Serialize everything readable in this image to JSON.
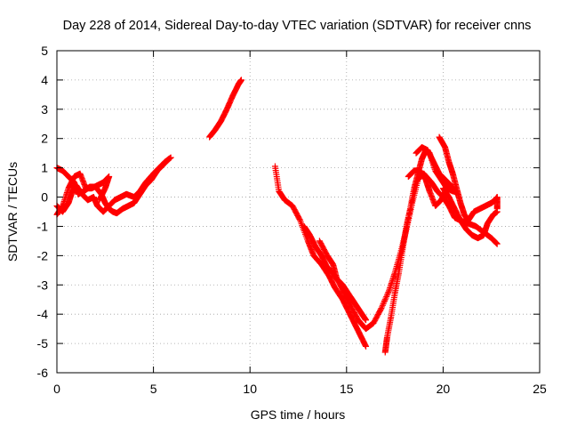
{
  "chart_data": {
    "type": "scatter",
    "title": "Day 228 of 2014, Sidereal Day-to-day VTEC variation (SDTVAR) for receiver cnns",
    "xlabel": "GPS time / hours",
    "ylabel": "SDTVAR / TECUs",
    "xlim": [
      0,
      25
    ],
    "ylim": [
      -6,
      5
    ],
    "xticks": [
      0,
      5,
      10,
      15,
      20,
      25
    ],
    "yticks": [
      -6,
      -5,
      -4,
      -3,
      -2,
      -1,
      0,
      1,
      2,
      3,
      4,
      5
    ],
    "grid": true,
    "marker": "plus",
    "series": [
      {
        "color": "#ff0000",
        "segments": [
          [
            [
              0.0,
              -0.3
            ],
            [
              0.3,
              -0.5
            ],
            [
              0.6,
              -0.2
            ],
            [
              0.8,
              0.2
            ],
            [
              1.0,
              0.4
            ],
            [
              1.3,
              0.1
            ],
            [
              1.6,
              -0.1
            ],
            [
              1.9,
              0.0
            ],
            [
              2.1,
              -0.3
            ],
            [
              2.4,
              -0.5
            ],
            [
              2.7,
              -0.3
            ],
            [
              3.0,
              -0.1
            ],
            [
              3.3,
              0.0
            ],
            [
              3.6,
              0.1
            ],
            [
              4.0,
              0.0
            ],
            [
              4.3,
              0.2
            ],
            [
              4.6,
              0.5
            ],
            [
              5.0,
              0.8
            ],
            [
              5.3,
              1.0
            ],
            [
              5.6,
              1.2
            ],
            [
              5.9,
              1.35
            ]
          ],
          [
            [
              0.0,
              1.0
            ],
            [
              0.3,
              0.9
            ],
            [
              0.6,
              0.7
            ],
            [
              0.9,
              0.5
            ],
            [
              1.1,
              0.1
            ],
            [
              1.4,
              0.2
            ],
            [
              1.7,
              0.35
            ],
            [
              2.0,
              0.35
            ],
            [
              2.3,
              0.1
            ],
            [
              2.5,
              -0.2
            ],
            [
              2.7,
              -0.4
            ],
            [
              2.9,
              -0.5
            ],
            [
              3.1,
              -0.55
            ],
            [
              3.4,
              -0.4
            ],
            [
              3.7,
              -0.3
            ],
            [
              4.0,
              -0.2
            ],
            [
              4.3,
              0.1
            ],
            [
              4.6,
              0.4
            ],
            [
              4.9,
              0.6
            ],
            [
              5.2,
              0.9
            ],
            [
              5.5,
              1.1
            ],
            [
              5.8,
              1.3
            ]
          ],
          [
            [
              0.0,
              -0.6
            ],
            [
              0.3,
              -0.3
            ],
            [
              0.6,
              0.3
            ],
            [
              0.9,
              0.7
            ],
            [
              1.2,
              0.8
            ],
            [
              1.5,
              0.3
            ],
            [
              1.8,
              0.3
            ],
            [
              2.1,
              0.4
            ],
            [
              2.4,
              0.5
            ],
            [
              2.7,
              0.7
            ],
            [
              2.5,
              0.3
            ],
            [
              2.2,
              -0.1
            ]
          ],
          [
            [
              7.9,
              2.05
            ],
            [
              8.2,
              2.3
            ],
            [
              8.5,
              2.6
            ],
            [
              8.8,
              3.0
            ],
            [
              9.1,
              3.45
            ],
            [
              9.4,
              3.85
            ],
            [
              9.55,
              4.0
            ]
          ],
          [
            [
              11.3,
              1.05
            ],
            [
              11.5,
              0.2
            ],
            [
              11.8,
              -0.1
            ],
            [
              12.2,
              -0.3
            ],
            [
              12.6,
              -0.8
            ],
            [
              13.0,
              -1.5
            ],
            [
              13.3,
              -2.0
            ],
            [
              13.7,
              -2.3
            ],
            [
              14.1,
              -2.7
            ],
            [
              14.4,
              -3.1
            ],
            [
              14.8,
              -3.5
            ],
            [
              15.1,
              -3.9
            ],
            [
              15.4,
              -4.3
            ],
            [
              15.7,
              -4.7
            ],
            [
              16.0,
              -5.1
            ]
          ],
          [
            [
              12.8,
              -1.0
            ],
            [
              13.1,
              -1.3
            ],
            [
              13.4,
              -1.7
            ],
            [
              13.7,
              -2.0
            ],
            [
              14.0,
              -2.4
            ],
            [
              14.3,
              -2.6
            ],
            [
              14.6,
              -2.9
            ],
            [
              14.9,
              -3.3
            ],
            [
              15.2,
              -3.7
            ],
            [
              15.6,
              -4.2
            ],
            [
              16.0,
              -4.5
            ],
            [
              16.4,
              -4.3
            ],
            [
              16.8,
              -3.8
            ],
            [
              17.2,
              -3.2
            ],
            [
              17.5,
              -2.6
            ],
            [
              17.8,
              -1.9
            ],
            [
              18.1,
              -1.1
            ],
            [
              18.4,
              -0.2
            ],
            [
              18.7,
              0.6
            ],
            [
              19.0,
              0.8
            ],
            [
              19.4,
              0.5
            ],
            [
              19.7,
              0.2
            ],
            [
              20.0,
              0.0
            ],
            [
              20.3,
              -0.3
            ],
            [
              20.6,
              -0.7
            ],
            [
              20.9,
              -0.8
            ],
            [
              21.3,
              -0.9
            ],
            [
              21.7,
              -1.0
            ],
            [
              22.1,
              -1.2
            ],
            [
              22.5,
              -1.4
            ],
            [
              22.8,
              -1.6
            ]
          ],
          [
            [
              13.6,
              -1.5
            ],
            [
              14.0,
              -2.0
            ],
            [
              14.3,
              -2.3
            ],
            [
              14.5,
              -2.8
            ],
            [
              14.8,
              -3.0
            ],
            [
              15.2,
              -3.4
            ],
            [
              15.5,
              -3.7
            ],
            [
              15.8,
              -4.0
            ],
            [
              16.0,
              -4.2
            ]
          ],
          [
            [
              17.0,
              -5.3
            ],
            [
              17.1,
              -4.8
            ],
            [
              17.3,
              -4.1
            ],
            [
              17.5,
              -3.3
            ],
            [
              17.7,
              -2.6
            ],
            [
              17.9,
              -1.8
            ],
            [
              18.1,
              -1.0
            ],
            [
              18.3,
              -0.4
            ],
            [
              18.5,
              0.3
            ],
            [
              18.7,
              0.8
            ],
            [
              18.9,
              1.3
            ],
            [
              19.1,
              1.6
            ],
            [
              19.3,
              1.5
            ],
            [
              19.6,
              0.9
            ],
            [
              19.9,
              0.6
            ],
            [
              20.2,
              0.3
            ],
            [
              20.5,
              0.3
            ]
          ],
          [
            [
              18.6,
              1.5
            ],
            [
              18.9,
              1.7
            ],
            [
              19.2,
              1.6
            ],
            [
              19.5,
              1.2
            ],
            [
              19.8,
              0.8
            ],
            [
              20.1,
              0.6
            ],
            [
              20.4,
              0.4
            ],
            [
              20.7,
              0.1
            ]
          ],
          [
            [
              18.2,
              0.7
            ],
            [
              18.5,
              0.9
            ],
            [
              18.8,
              0.9
            ],
            [
              19.1,
              0.6
            ],
            [
              19.3,
              0.2
            ],
            [
              19.6,
              -0.3
            ],
            [
              19.9,
              -0.1
            ],
            [
              20.2,
              0.3
            ],
            [
              20.5,
              0.2
            ]
          ],
          [
            [
              19.8,
              2.05
            ],
            [
              20.1,
              1.7
            ],
            [
              20.3,
              1.2
            ],
            [
              20.5,
              0.8
            ],
            [
              20.7,
              0.3
            ],
            [
              20.9,
              -0.2
            ],
            [
              21.1,
              -0.6
            ],
            [
              21.3,
              -0.8
            ],
            [
              21.6,
              -0.5
            ],
            [
              21.9,
              -0.4
            ],
            [
              22.2,
              -0.3
            ],
            [
              22.5,
              -0.2
            ],
            [
              22.7,
              -0.1
            ],
            [
              22.8,
              0.0
            ],
            [
              22.8,
              -0.4
            ]
          ],
          [
            [
              20.0,
              0.3
            ],
            [
              20.3,
              0.0
            ],
            [
              20.6,
              -0.4
            ],
            [
              20.9,
              -0.8
            ],
            [
              21.2,
              -1.1
            ],
            [
              21.5,
              -1.3
            ],
            [
              21.8,
              -1.4
            ],
            [
              22.1,
              -1.3
            ],
            [
              22.3,
              -0.9
            ],
            [
              22.6,
              -0.6
            ],
            [
              22.8,
              -0.5
            ]
          ]
        ]
      }
    ]
  }
}
